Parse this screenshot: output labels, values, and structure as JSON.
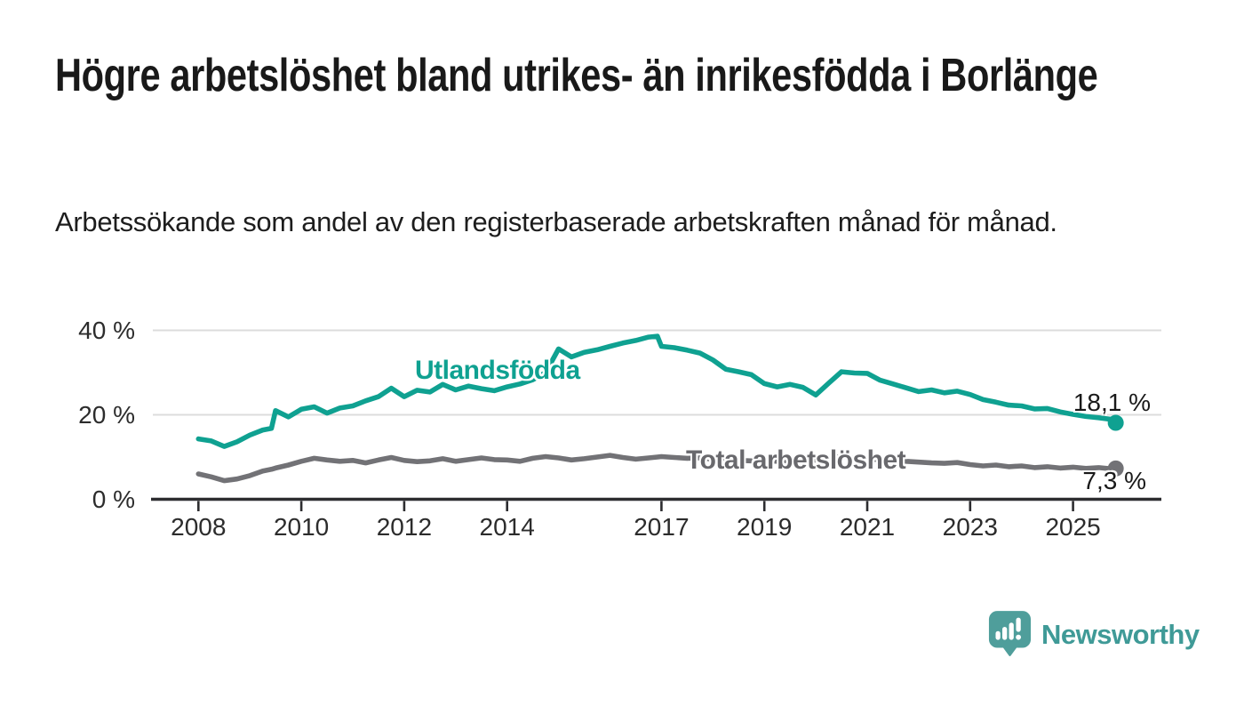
{
  "header": {
    "title": "Högre arbetslöshet bland utrikes- än inrikesfödda i Borlänge",
    "subtitle": "Arbetssökande som andel av den registerbaserade arbetskraften månad för månad."
  },
  "chart_data": {
    "type": "line",
    "title": "Högre arbetslöshet bland utrikes- än inrikesfödda i Borlänge",
    "xlabel": "",
    "ylabel": "Arbetssökande som andel av den registerbaserade arbetskraften",
    "x_unit": "decimal_year_monthly",
    "xlim": [
      2007.8,
      2026.6
    ],
    "ylim": [
      0,
      42
    ],
    "grid": "horizontal",
    "y_ticks": [
      {
        "value": 0,
        "label": "0 %"
      },
      {
        "value": 20,
        "label": "20 %"
      },
      {
        "value": 40,
        "label": "40 %"
      }
    ],
    "x_ticks": [
      {
        "value": 2008,
        "label": "2008"
      },
      {
        "value": 2010,
        "label": "2010"
      },
      {
        "value": 2012,
        "label": "2012"
      },
      {
        "value": 2014,
        "label": "2014"
      },
      {
        "value": 2017,
        "label": "2017"
      },
      {
        "value": 2019,
        "label": "2019"
      },
      {
        "value": 2021,
        "label": "2021"
      },
      {
        "value": 2023,
        "label": "2023"
      },
      {
        "value": 2025,
        "label": "2025"
      }
    ],
    "x": [
      2008.0,
      2008.25,
      2008.5,
      2008.75,
      2009.0,
      2009.25,
      2009.42,
      2009.5,
      2009.75,
      2010.0,
      2010.25,
      2010.5,
      2010.75,
      2011.0,
      2011.25,
      2011.5,
      2011.75,
      2012.0,
      2012.25,
      2012.5,
      2012.75,
      2013.0,
      2013.25,
      2013.5,
      2013.75,
      2014.0,
      2014.25,
      2014.5,
      2014.75,
      2015.0,
      2015.25,
      2015.5,
      2015.75,
      2016.0,
      2016.25,
      2016.5,
      2016.75,
      2016.92,
      2017.0,
      2017.25,
      2017.5,
      2017.75,
      2018.0,
      2018.25,
      2018.5,
      2018.75,
      2019.0,
      2019.25,
      2019.5,
      2019.75,
      2020.0,
      2020.25,
      2020.5,
      2020.75,
      2021.0,
      2021.25,
      2021.5,
      2021.75,
      2022.0,
      2022.25,
      2022.5,
      2022.75,
      2023.0,
      2023.25,
      2023.5,
      2023.75,
      2024.0,
      2024.25,
      2024.5,
      2024.75,
      2025.0,
      2025.25,
      2025.5,
      2025.75,
      2025.83
    ],
    "series": [
      {
        "name": "Utlandsfödda",
        "color": "#0FA191",
        "end_value": 18.1,
        "end_label": "18,1 %",
        "values": [
          14.3,
          13.8,
          12.5,
          13.6,
          15.2,
          16.4,
          16.8,
          21.0,
          19.5,
          21.3,
          21.9,
          20.4,
          21.6,
          22.1,
          23.3,
          24.3,
          26.3,
          24.3,
          25.8,
          25.4,
          27.2,
          25.9,
          26.8,
          26.2,
          25.7,
          26.6,
          27.3,
          28.3,
          30.0,
          35.6,
          33.7,
          34.8,
          35.4,
          36.2,
          37.0,
          37.6,
          38.4,
          38.6,
          36.2,
          35.9,
          35.3,
          34.6,
          33.0,
          30.8,
          30.2,
          29.5,
          27.4,
          26.6,
          27.2,
          26.5,
          24.7,
          27.5,
          30.2,
          29.9,
          29.8,
          28.2,
          27.3,
          26.4,
          25.5,
          25.9,
          25.2,
          25.6,
          24.8,
          23.6,
          23.0,
          22.3,
          22.1,
          21.4,
          21.5,
          20.7,
          20.1,
          19.6,
          19.3,
          18.9,
          18.1
        ]
      },
      {
        "name": "Total arbetslöshet",
        "color": "#727276",
        "end_value": 7.3,
        "end_label": "7,3 %",
        "values": [
          6.0,
          5.3,
          4.4,
          4.8,
          5.6,
          6.7,
          7.1,
          7.4,
          8.1,
          9.0,
          9.7,
          9.3,
          9.0,
          9.2,
          8.6,
          9.3,
          9.9,
          9.2,
          8.9,
          9.1,
          9.6,
          9.0,
          9.4,
          9.8,
          9.4,
          9.3,
          9.0,
          9.7,
          10.1,
          9.8,
          9.3,
          9.6,
          10.0,
          10.4,
          9.9,
          9.5,
          9.8,
          10.0,
          10.1,
          9.9,
          9.7,
          9.8,
          9.5,
          9.3,
          9.2,
          9.1,
          9.2,
          9.0,
          9.2,
          9.1,
          9.3,
          9.9,
          10.1,
          9.8,
          9.6,
          9.4,
          9.2,
          9.0,
          8.8,
          8.6,
          8.5,
          8.7,
          8.2,
          7.9,
          8.1,
          7.7,
          7.9,
          7.5,
          7.7,
          7.4,
          7.6,
          7.3,
          7.5,
          7.2,
          7.3
        ]
      }
    ],
    "legend_position": "inline-labels"
  },
  "colors": {
    "accent_teal": "#0FA191",
    "series_total_gray": "#727276",
    "grid": "#DCDCDC",
    "axis": "#2D2D30",
    "text_dark": "#191919",
    "brand_teal": "#3F9A97",
    "brand_icon_teal": "#4F9E9B"
  },
  "footer": {
    "brand": "Newsworthy"
  }
}
